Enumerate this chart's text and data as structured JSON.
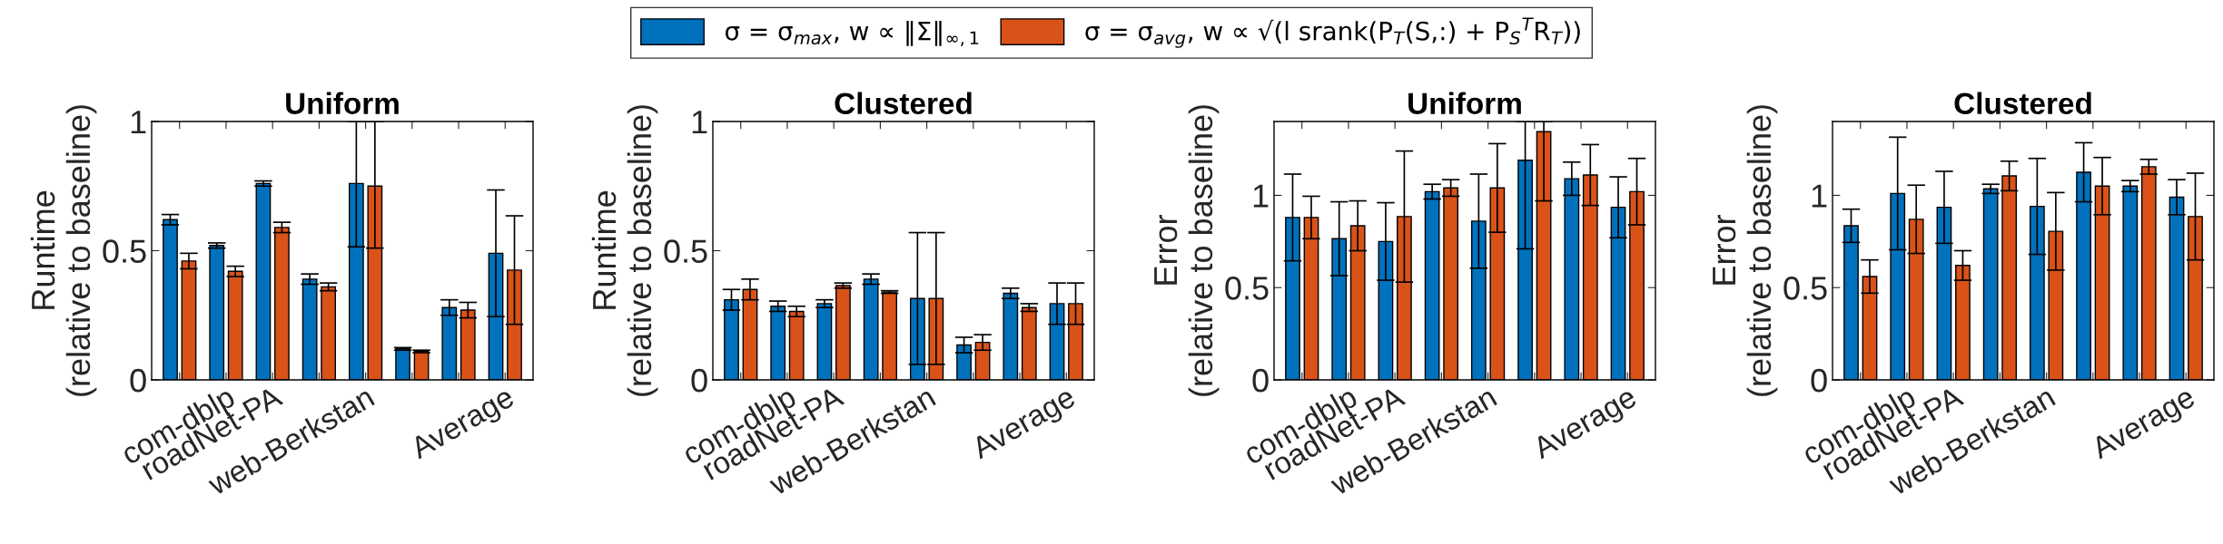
{
  "chart_data": [
    {
      "type": "bar",
      "title": "Uniform",
      "ylabel": "Runtime\n(relative to baseline)",
      "categories": [
        null,
        "com-dblp",
        "roadNet-PA",
        null,
        "web-Berkstan",
        null,
        null,
        "Average"
      ],
      "ylim": [
        0,
        1
      ],
      "yticks": [
        0,
        0.5,
        1
      ],
      "legend": "top",
      "grid": false,
      "series": [
        {
          "name": "σ = σ$_{max}$, w ∝ ‖Σ‖$_{∞,1}$",
          "color": "#0072bd",
          "values": [
            0.62,
            0.52,
            0.76,
            0.39,
            0.76,
            0.12,
            0.28,
            0.49
          ],
          "errors": [
            0.02,
            0.01,
            0.01,
            0.02,
            [
              0.515,
              1
            ],
            0.005,
            0.03,
            0.245
          ]
        },
        {
          "name": "σ = σ$_{avg}$, w ∝ √(l srank(P$_{T}$(S,:) + P$_{S}$$^{T}$R$_{T}$))",
          "color": "#d95319",
          "values": [
            0.46,
            0.42,
            0.59,
            0.36,
            0.75,
            0.11,
            0.27,
            0.425
          ],
          "errors": [
            0.03,
            0.02,
            0.02,
            0.015,
            [
              0.51,
              1
            ],
            0.005,
            0.03,
            0.21
          ]
        }
      ]
    },
    {
      "type": "bar",
      "title": "Clustered",
      "ylabel": "Runtime\n(relative to baseline)",
      "categories": [
        null,
        "com-dblp",
        "roadNet-PA",
        null,
        "web-Berkstan",
        null,
        null,
        "Average"
      ],
      "ylim": [
        0,
        1
      ],
      "yticks": [
        0,
        0.5,
        1
      ],
      "grid": false,
      "series": [
        {
          "color": "#0072bd",
          "values": [
            0.31,
            0.285,
            0.295,
            0.39,
            0.315,
            0.135,
            0.335,
            0.295
          ],
          "errors": [
            0.04,
            0.02,
            0.015,
            0.02,
            0.255,
            0.03,
            0.02,
            0.08
          ]
        },
        {
          "color": "#d95319",
          "values": [
            0.35,
            0.265,
            0.365,
            0.34,
            0.315,
            0.145,
            0.28,
            0.295
          ],
          "errors": [
            0.04,
            0.02,
            0.01,
            0.005,
            0.255,
            0.03,
            0.015,
            0.08
          ]
        }
      ]
    },
    {
      "type": "bar",
      "title": "Uniform",
      "ylabel": "Error\n(relative to baseline)",
      "categories": [
        null,
        "com-dblp",
        "roadNet-PA",
        null,
        "web-Berkstan",
        null,
        null,
        "Average"
      ],
      "ylim": [
        0,
        1.4
      ],
      "yticks": [
        0,
        0.5,
        1
      ],
      "grid": false,
      "series": [
        {
          "color": "#0072bd",
          "values": [
            0.88,
            0.765,
            0.75,
            1.02,
            0.86,
            1.19,
            1.09,
            0.935
          ],
          "errors": [
            0.235,
            0.2,
            0.21,
            0.04,
            0.255,
            [
              0.71,
              1.4
            ],
            0.09,
            0.165
          ]
        },
        {
          "color": "#d95319",
          "values": [
            0.88,
            0.835,
            0.885,
            1.04,
            1.04,
            1.345,
            1.11,
            1.02
          ],
          "errors": [
            0.115,
            0.135,
            0.355,
            0.045,
            0.24,
            [
              0.97,
              1.4
            ],
            0.165,
            0.18
          ]
        }
      ]
    },
    {
      "type": "bar",
      "title": "Clustered",
      "ylabel": "Error\n(relative to baseline)",
      "categories": [
        null,
        "com-dblp",
        "roadNet-PA",
        null,
        "web-Berkstan",
        null,
        null,
        "Average"
      ],
      "ylim": [
        0,
        1.4
      ],
      "yticks": [
        0,
        0.5,
        1
      ],
      "grid": false,
      "series": [
        {
          "color": "#0072bd",
          "values": [
            0.835,
            1.01,
            0.935,
            1.035,
            0.94,
            1.125,
            1.05,
            0.99
          ],
          "errors": [
            0.09,
            0.305,
            0.195,
            0.025,
            0.26,
            0.16,
            0.03,
            0.095
          ]
        },
        {
          "color": "#d95319",
          "values": [
            0.56,
            0.87,
            0.62,
            1.105,
            0.805,
            1.05,
            1.155,
            0.885
          ],
          "errors": [
            0.09,
            0.185,
            0.08,
            0.08,
            0.21,
            0.155,
            0.04,
            0.235
          ]
        }
      ]
    }
  ]
}
